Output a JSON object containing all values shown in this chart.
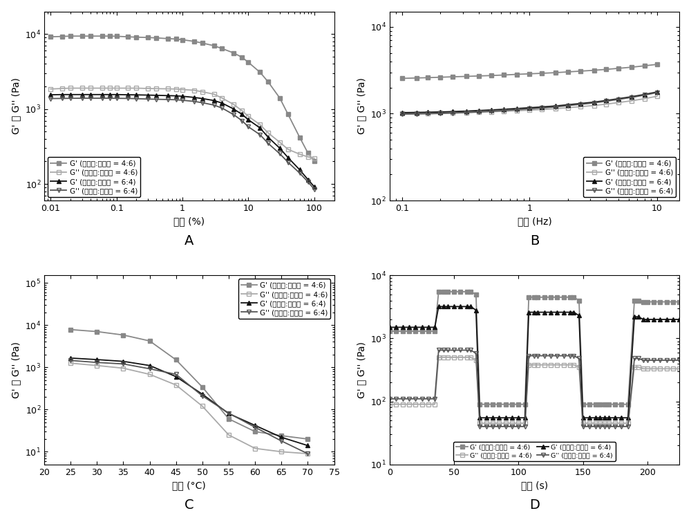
{
  "panel_A": {
    "xlabel": "应变 (%)",
    "label": "A",
    "series": [
      {
        "label": "G' (油溶液:水溶液 = 4:6)",
        "color": "#888888",
        "marker": "s",
        "fillstyle": "full",
        "x": [
          0.01,
          0.015,
          0.02,
          0.03,
          0.04,
          0.06,
          0.08,
          0.1,
          0.15,
          0.2,
          0.3,
          0.4,
          0.6,
          0.8,
          1.0,
          1.5,
          2.0,
          3.0,
          4.0,
          6.0,
          8.0,
          10.0,
          15.0,
          20.0,
          30.0,
          40.0,
          60.0,
          80.0,
          100.0
        ],
        "y": [
          9200,
          9300,
          9400,
          9400,
          9400,
          9400,
          9400,
          9350,
          9200,
          9100,
          9000,
          8900,
          8700,
          8600,
          8400,
          8000,
          7600,
          7000,
          6400,
          5600,
          4900,
          4200,
          3100,
          2300,
          1400,
          850,
          420,
          260,
          200
        ]
      },
      {
        "label": "G'' (油溶液:水溶液 = 4:6)",
        "color": "#aaaaaa",
        "marker": "s",
        "fillstyle": "none",
        "x": [
          0.01,
          0.015,
          0.02,
          0.03,
          0.04,
          0.06,
          0.08,
          0.1,
          0.15,
          0.2,
          0.3,
          0.4,
          0.6,
          0.8,
          1.0,
          1.5,
          2.0,
          3.0,
          4.0,
          6.0,
          8.0,
          10.0,
          15.0,
          20.0,
          30.0,
          40.0,
          60.0,
          80.0,
          100.0
        ],
        "y": [
          1850,
          1880,
          1900,
          1900,
          1900,
          1900,
          1900,
          1900,
          1900,
          1900,
          1880,
          1870,
          1860,
          1850,
          1820,
          1780,
          1700,
          1580,
          1400,
          1150,
          950,
          800,
          620,
          480,
          360,
          290,
          250,
          230,
          220
        ]
      },
      {
        "label": "G' (油溶液:水溶液 = 6:4)",
        "color": "#111111",
        "marker": "^",
        "fillstyle": "full",
        "x": [
          0.01,
          0.015,
          0.02,
          0.03,
          0.04,
          0.06,
          0.08,
          0.1,
          0.15,
          0.2,
          0.3,
          0.4,
          0.6,
          0.8,
          1.0,
          1.5,
          2.0,
          3.0,
          4.0,
          6.0,
          8.0,
          10.0,
          15.0,
          20.0,
          30.0,
          40.0,
          60.0,
          80.0,
          100.0
        ],
        "y": [
          1550,
          1560,
          1560,
          1560,
          1560,
          1560,
          1560,
          1560,
          1550,
          1545,
          1535,
          1525,
          1510,
          1500,
          1480,
          1430,
          1380,
          1300,
          1200,
          1000,
          850,
          720,
          560,
          420,
          300,
          225,
          155,
          115,
          92
        ]
      },
      {
        "label": "G'' (油溶液:水溶液 = 6:4)",
        "color": "#555555",
        "marker": "v",
        "fillstyle": "none",
        "x": [
          0.01,
          0.015,
          0.02,
          0.03,
          0.04,
          0.06,
          0.08,
          0.1,
          0.15,
          0.2,
          0.3,
          0.4,
          0.6,
          0.8,
          1.0,
          1.5,
          2.0,
          3.0,
          4.0,
          6.0,
          8.0,
          10.0,
          15.0,
          20.0,
          30.0,
          40.0,
          60.0,
          80.0,
          100.0
        ],
        "y": [
          1380,
          1385,
          1390,
          1395,
          1395,
          1395,
          1395,
          1390,
          1385,
          1375,
          1360,
          1350,
          1340,
          1330,
          1310,
          1265,
          1215,
          1130,
          1030,
          840,
          700,
          580,
          455,
          348,
          253,
          195,
          140,
          107,
          85
        ]
      }
    ],
    "xlim": [
      0.008,
      200
    ],
    "ylim": [
      60,
      20000
    ]
  },
  "panel_B": {
    "xlabel": "频率 (Hz)",
    "label": "B",
    "series": [
      {
        "label": "G' (油溶液:水溶液 = 4:6)",
        "color": "#888888",
        "marker": "s",
        "fillstyle": "full",
        "x": [
          0.1,
          0.13,
          0.16,
          0.2,
          0.25,
          0.32,
          0.4,
          0.5,
          0.63,
          0.8,
          1.0,
          1.25,
          1.6,
          2.0,
          2.5,
          3.2,
          4.0,
          5.0,
          6.3,
          8.0,
          10.0
        ],
        "y": [
          2550,
          2580,
          2600,
          2630,
          2660,
          2690,
          2720,
          2750,
          2790,
          2840,
          2880,
          2920,
          2970,
          3030,
          3090,
          3160,
          3240,
          3330,
          3430,
          3560,
          3700
        ]
      },
      {
        "label": "G'' (油溶液:水溶液 = 4:6)",
        "color": "#aaaaaa",
        "marker": "s",
        "fillstyle": "none",
        "x": [
          0.1,
          0.13,
          0.16,
          0.2,
          0.25,
          0.32,
          0.4,
          0.5,
          0.63,
          0.8,
          1.0,
          1.25,
          1.6,
          2.0,
          2.5,
          3.2,
          4.0,
          5.0,
          6.3,
          8.0,
          10.0
        ],
        "y": [
          1010,
          1015,
          1018,
          1020,
          1025,
          1032,
          1042,
          1053,
          1067,
          1083,
          1100,
          1118,
          1143,
          1172,
          1205,
          1245,
          1290,
          1345,
          1408,
          1490,
          1590
        ]
      },
      {
        "label": "G' (油溶液:水溶液 = 6:4)",
        "color": "#111111",
        "marker": "^",
        "fillstyle": "full",
        "x": [
          0.1,
          0.13,
          0.16,
          0.2,
          0.25,
          0.32,
          0.4,
          0.5,
          0.63,
          0.8,
          1.0,
          1.25,
          1.6,
          2.0,
          2.5,
          3.2,
          4.0,
          5.0,
          6.3,
          8.0,
          10.0
        ],
        "y": [
          1030,
          1035,
          1040,
          1048,
          1058,
          1072,
          1088,
          1105,
          1125,
          1148,
          1172,
          1196,
          1228,
          1268,
          1310,
          1360,
          1420,
          1490,
          1568,
          1668,
          1780
        ]
      },
      {
        "label": "G'' (油溶液:水溶液 = 6:4)",
        "color": "#555555",
        "marker": "v",
        "fillstyle": "none",
        "x": [
          0.1,
          0.13,
          0.16,
          0.2,
          0.25,
          0.32,
          0.4,
          0.5,
          0.63,
          0.8,
          1.0,
          1.25,
          1.6,
          2.0,
          2.5,
          3.2,
          4.0,
          5.0,
          6.3,
          8.0,
          10.0
        ],
        "y": [
          990,
          995,
          1000,
          1008,
          1018,
          1032,
          1050,
          1068,
          1090,
          1115,
          1140,
          1165,
          1198,
          1240,
          1282,
          1332,
          1395,
          1463,
          1540,
          1640,
          1750
        ]
      }
    ],
    "xlim": [
      0.08,
      15
    ],
    "ylim": [
      100,
      15000
    ]
  },
  "panel_C": {
    "xlabel": "温度 (°C)",
    "label": "C",
    "series": [
      {
        "label": "G' (油溶液:水溶液 = 4:6)",
        "color": "#888888",
        "marker": "s",
        "fillstyle": "full",
        "x": [
          25,
          30,
          35,
          40,
          45,
          50,
          55,
          60,
          65,
          70
        ],
        "y": [
          7800,
          7000,
          5800,
          4200,
          1500,
          340,
          60,
          30,
          24,
          20
        ]
      },
      {
        "label": "G'' (油溶液:水溶液 = 4:6)",
        "color": "#aaaaaa",
        "marker": "s",
        "fillstyle": "none",
        "x": [
          25,
          30,
          35,
          40,
          45,
          50,
          55,
          60,
          65,
          70
        ],
        "y": [
          1250,
          1100,
          950,
          680,
          380,
          120,
          25,
          12,
          10,
          9
        ]
      },
      {
        "label": "G' (油溶液:水溶液 = 6:4)",
        "color": "#111111",
        "marker": "^",
        "fillstyle": "full",
        "x": [
          25,
          30,
          35,
          40,
          45,
          50,
          55,
          60,
          65,
          70
        ],
        "y": [
          1650,
          1520,
          1380,
          1100,
          600,
          230,
          80,
          42,
          22,
          14
        ]
      },
      {
        "label": "G'' (油溶液:水溶液 = 6:4)",
        "color": "#555555",
        "marker": "v",
        "fillstyle": "none",
        "x": [
          25,
          30,
          35,
          40,
          45,
          50,
          55,
          60,
          65,
          70
        ],
        "y": [
          1450,
          1300,
          1200,
          920,
          680,
          210,
          82,
          38,
          18,
          9
        ]
      }
    ],
    "xlim": [
      20,
      75
    ],
    "ylim": [
      5,
      150000
    ],
    "xticks": [
      20,
      25,
      30,
      35,
      40,
      45,
      50,
      55,
      60,
      65,
      70,
      75
    ]
  },
  "panel_D": {
    "xlabel": "时间 (s)",
    "label": "D",
    "series": [
      {
        "label": "G' (油溶液:水溶液 = 4:6)",
        "color": "#888888",
        "marker": "s",
        "fillstyle": "full",
        "x": [
          0,
          5,
          10,
          15,
          20,
          25,
          30,
          35,
          38,
          42,
          45,
          50,
          55,
          60,
          63,
          67,
          70,
          75,
          80,
          85,
          90,
          95,
          100,
          105,
          108,
          112,
          115,
          120,
          125,
          130,
          135,
          140,
          143,
          147,
          150,
          155,
          160,
          163,
          167,
          170,
          175,
          180,
          185,
          190,
          193,
          197,
          200,
          205,
          210,
          215,
          220,
          225
        ],
        "y": [
          1300,
          1300,
          1300,
          1300,
          1300,
          1300,
          1300,
          1300,
          5500,
          5500,
          5500,
          5500,
          5500,
          5500,
          5500,
          5000,
          90,
          90,
          90,
          90,
          90,
          90,
          90,
          90,
          4500,
          4500,
          4500,
          4500,
          4500,
          4500,
          4500,
          4500,
          4500,
          4000,
          90,
          90,
          90,
          90,
          90,
          90,
          90,
          90,
          90,
          4000,
          4000,
          3800,
          3800,
          3800,
          3800,
          3800,
          3800,
          3800
        ]
      },
      {
        "label": "G'' (油溶液:水溶液 = 4:6)",
        "color": "#aaaaaa",
        "marker": "s",
        "fillstyle": "none",
        "x": [
          0,
          5,
          10,
          15,
          20,
          25,
          30,
          35,
          38,
          42,
          45,
          50,
          55,
          60,
          63,
          67,
          70,
          75,
          80,
          85,
          90,
          95,
          100,
          105,
          108,
          112,
          115,
          120,
          125,
          130,
          135,
          140,
          143,
          147,
          150,
          155,
          160,
          163,
          167,
          170,
          175,
          180,
          185,
          190,
          193,
          197,
          200,
          205,
          210,
          215,
          220,
          225
        ],
        "y": [
          90,
          90,
          90,
          90,
          90,
          90,
          90,
          90,
          500,
          500,
          500,
          500,
          500,
          500,
          500,
          450,
          45,
          45,
          45,
          45,
          45,
          45,
          45,
          45,
          380,
          380,
          380,
          380,
          380,
          380,
          380,
          380,
          380,
          350,
          45,
          45,
          45,
          45,
          45,
          45,
          45,
          45,
          45,
          350,
          350,
          330,
          330,
          330,
          330,
          330,
          330,
          330
        ]
      },
      {
        "label": "G' (油溶液:水溶液 = 6:4)",
        "color": "#111111",
        "marker": "^",
        "fillstyle": "full",
        "x": [
          0,
          5,
          10,
          15,
          20,
          25,
          30,
          35,
          38,
          42,
          45,
          50,
          55,
          60,
          63,
          67,
          70,
          75,
          80,
          85,
          90,
          95,
          100,
          105,
          108,
          112,
          115,
          120,
          125,
          130,
          135,
          140,
          143,
          147,
          150,
          155,
          160,
          163,
          167,
          170,
          175,
          180,
          185,
          190,
          193,
          197,
          200,
          205,
          210,
          215,
          220,
          225
        ],
        "y": [
          1500,
          1500,
          1500,
          1500,
          1500,
          1500,
          1500,
          1500,
          3200,
          3200,
          3200,
          3200,
          3200,
          3200,
          3200,
          2800,
          55,
          55,
          55,
          55,
          55,
          55,
          55,
          55,
          2600,
          2600,
          2600,
          2600,
          2600,
          2600,
          2600,
          2600,
          2600,
          2300,
          55,
          55,
          55,
          55,
          55,
          55,
          55,
          55,
          55,
          2200,
          2200,
          2000,
          2000,
          2000,
          2000,
          2000,
          2000,
          2000
        ]
      },
      {
        "label": "G'' (油溶液:水溶液 = 6:4)",
        "color": "#555555",
        "marker": "v",
        "fillstyle": "none",
        "x": [
          0,
          5,
          10,
          15,
          20,
          25,
          30,
          35,
          38,
          42,
          45,
          50,
          55,
          60,
          63,
          67,
          70,
          75,
          80,
          85,
          90,
          95,
          100,
          105,
          108,
          112,
          115,
          120,
          125,
          130,
          135,
          140,
          143,
          147,
          150,
          155,
          160,
          163,
          167,
          170,
          175,
          180,
          185,
          190,
          193,
          197,
          200,
          205,
          210,
          215,
          220,
          225
        ],
        "y": [
          110,
          110,
          110,
          110,
          110,
          110,
          110,
          110,
          650,
          650,
          650,
          650,
          650,
          650,
          650,
          580,
          40,
          40,
          40,
          40,
          40,
          40,
          40,
          40,
          530,
          530,
          530,
          530,
          530,
          530,
          530,
          530,
          530,
          480,
          40,
          40,
          40,
          40,
          40,
          40,
          40,
          40,
          40,
          480,
          480,
          450,
          450,
          450,
          450,
          450,
          450,
          450
        ]
      }
    ],
    "xlim": [
      0,
      225
    ],
    "ylim": [
      10,
      10000
    ],
    "xticks": [
      0,
      50,
      100,
      150,
      200
    ]
  },
  "ylabel": "G' 和 G'' (Pa)"
}
